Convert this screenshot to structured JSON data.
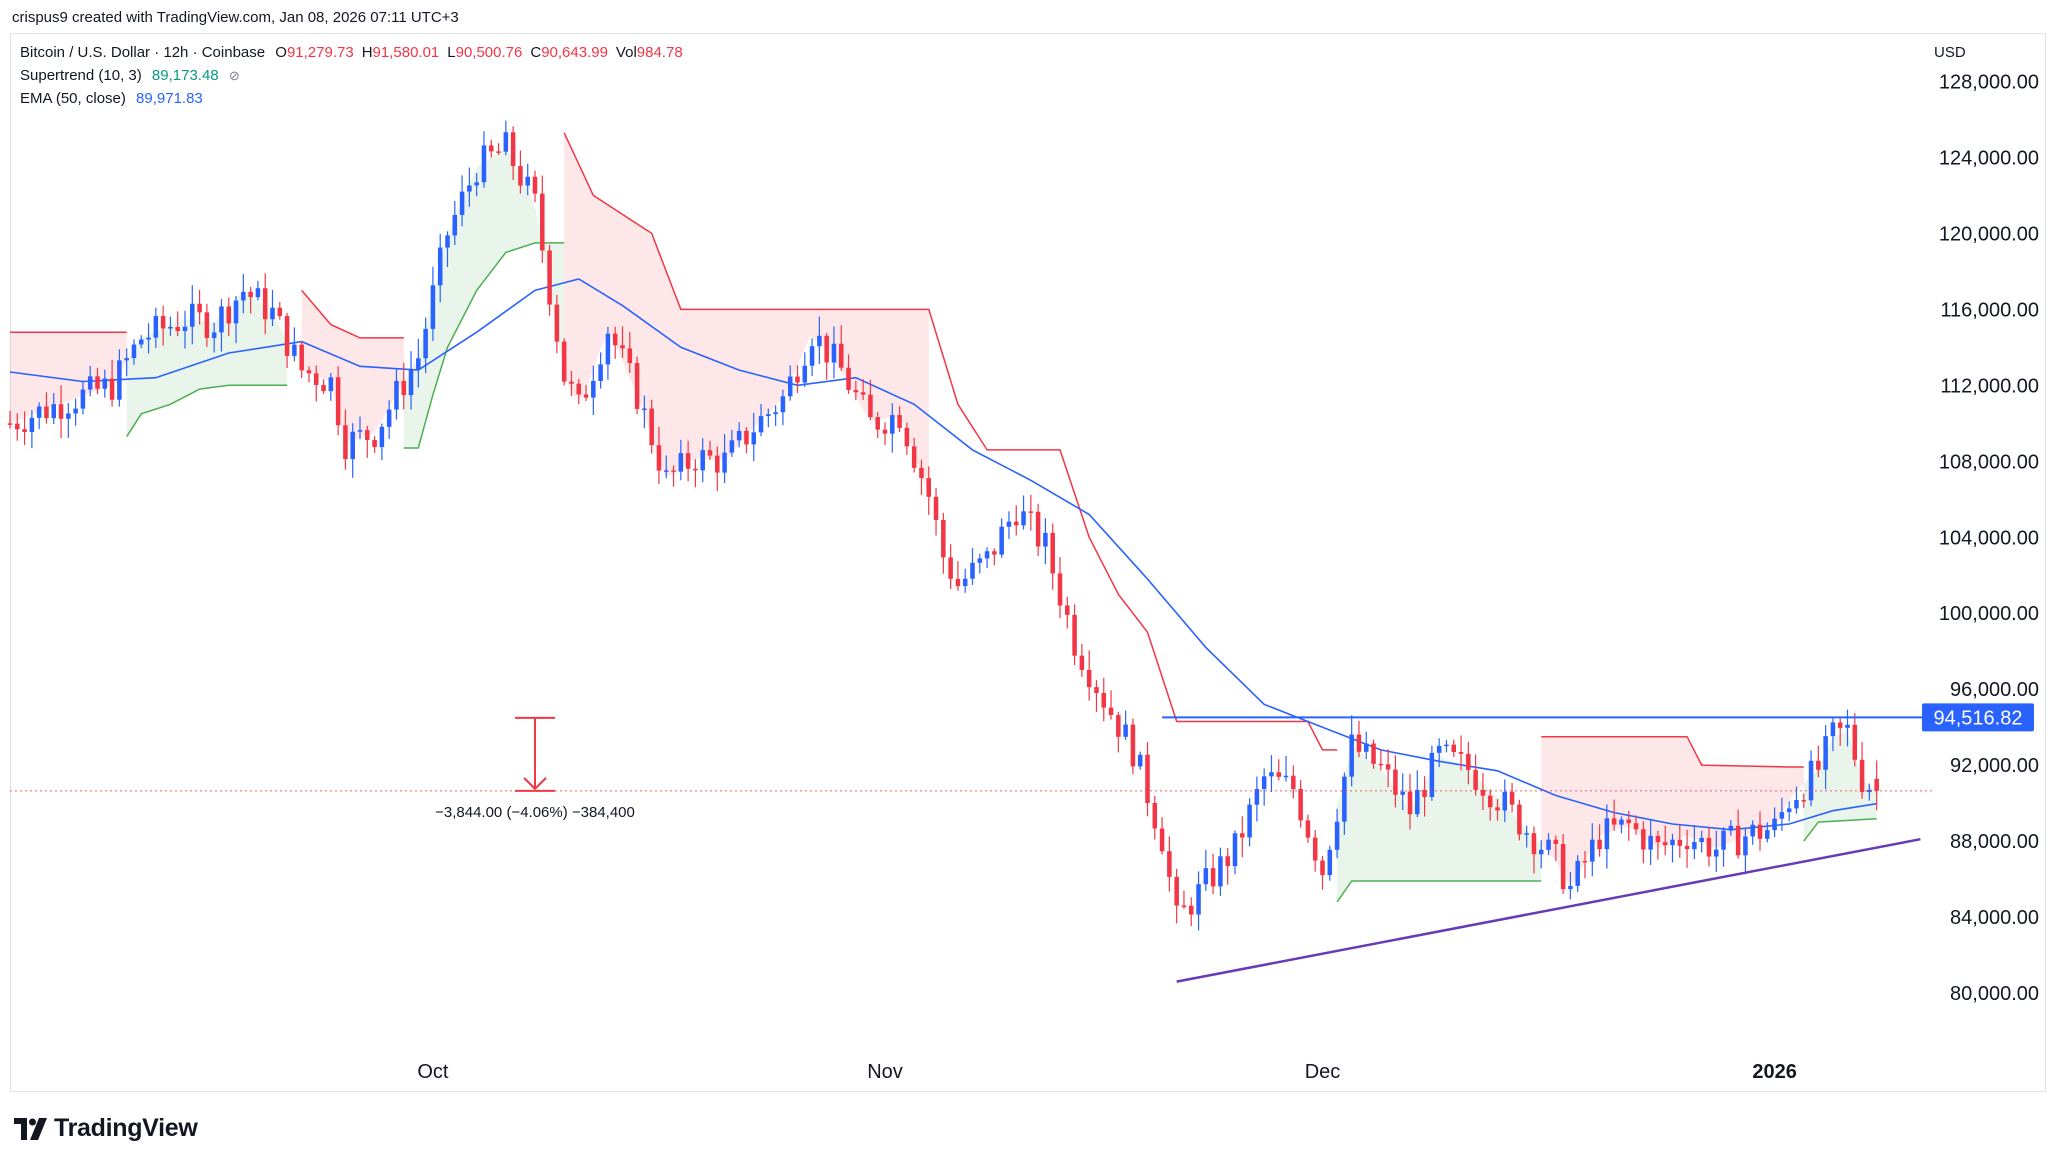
{
  "header": {
    "attribution": "crispus9 created with TradingView.com, Jan 08, 2026 07:11 UTC+3"
  },
  "legend": {
    "symbol": "Bitcoin / U.S. Dollar · 12h · Coinbase",
    "ohlc": [
      {
        "key": "O",
        "value": "91,279.73"
      },
      {
        "key": "H",
        "value": "91,580.01"
      },
      {
        "key": "L",
        "value": "90,500.76"
      },
      {
        "key": "C",
        "value": "90,643.99"
      },
      {
        "key": "Vol",
        "value": "984.78"
      }
    ],
    "supertrend_label": "Supertrend (10, 3)",
    "supertrend_value": "89,173.48",
    "ema_label": "EMA (50, close)",
    "ema_value": "89,971.83"
  },
  "currency": "USD",
  "brand": "TradingView",
  "colors": {
    "up": "#2962ff",
    "down": "#f23645",
    "ema": "#2962ff",
    "supertrend_up": "#4caf50",
    "supertrend_down": "#f23645",
    "support_line": "#673ab7",
    "resistance_line": "#2962ff"
  },
  "chart_data": {
    "type": "candlestick",
    "interval": "12h",
    "y_axis": {
      "ticks": [
        80000,
        84000,
        88000,
        92000,
        96000,
        100000,
        104000,
        108000,
        112000,
        116000,
        120000,
        124000,
        128000
      ],
      "tick_labels": [
        "80,000.00",
        "84,000.00",
        "88,000.00",
        "92,000.00",
        "96,000.00",
        "100,000.00",
        "104,000.00",
        "108,000.00",
        "112,000.00",
        "116,000.00",
        "120,000.00",
        "124,000.00",
        "128,000.00"
      ],
      "range": [
        77000,
        130500
      ]
    },
    "x_axis": {
      "labels": [
        {
          "text": "Oct",
          "date": "2025-10-01",
          "bold": false
        },
        {
          "text": "Nov",
          "date": "2025-11-01",
          "bold": false
        },
        {
          "text": "Dec",
          "date": "2025-12-01",
          "bold": false
        },
        {
          "text": "2026",
          "date": "2026-01-01",
          "bold": true
        }
      ],
      "range": [
        "2025-09-02",
        "2026-01-12"
      ]
    },
    "price_levels": [
      {
        "name": "resistance",
        "value": 94516.82,
        "label": "94,516.82",
        "from": "2025-11-20",
        "to": "2026-01-12"
      },
      {
        "name": "last-price",
        "value": 90643.99
      }
    ],
    "trendline": {
      "from": {
        "date": "2025-11-21",
        "value": 80600
      },
      "to": {
        "date": "2026-01-11",
        "value": 88100
      }
    },
    "measure": {
      "from_value": 94487.99,
      "to_value": 90643.99,
      "date": "2025-10-08",
      "text": "−3,844.00 (−4.06%) −384,400"
    },
    "ema_50": [
      {
        "date": "2025-09-02",
        "value": 112700
      },
      {
        "date": "2025-09-07",
        "value": 112200
      },
      {
        "date": "2025-09-12",
        "value": 112400
      },
      {
        "date": "2025-09-17",
        "value": 113700
      },
      {
        "date": "2025-09-22",
        "value": 114300
      },
      {
        "date": "2025-09-26",
        "value": 113000
      },
      {
        "date": "2025-09-30",
        "value": 112800
      },
      {
        "date": "2025-10-04",
        "value": 114800
      },
      {
        "date": "2025-10-08",
        "value": 117000
      },
      {
        "date": "2025-10-11",
        "value": 117600
      },
      {
        "date": "2025-10-14",
        "value": 116200
      },
      {
        "date": "2025-10-18",
        "value": 114000
      },
      {
        "date": "2025-10-22",
        "value": 112800
      },
      {
        "date": "2025-10-26",
        "value": 112000
      },
      {
        "date": "2025-10-30",
        "value": 112400
      },
      {
        "date": "2025-11-03",
        "value": 111000
      },
      {
        "date": "2025-11-07",
        "value": 108600
      },
      {
        "date": "2025-11-11",
        "value": 107000
      },
      {
        "date": "2025-11-15",
        "value": 105200
      },
      {
        "date": "2025-11-19",
        "value": 101800
      },
      {
        "date": "2025-11-23",
        "value": 98200
      },
      {
        "date": "2025-11-27",
        "value": 95200
      },
      {
        "date": "2025-12-01",
        "value": 94000
      },
      {
        "date": "2025-12-05",
        "value": 92800
      },
      {
        "date": "2025-12-09",
        "value": 92200
      },
      {
        "date": "2025-12-13",
        "value": 91700
      },
      {
        "date": "2025-12-17",
        "value": 90400
      },
      {
        "date": "2025-12-21",
        "value": 89500
      },
      {
        "date": "2025-12-25",
        "value": 88900
      },
      {
        "date": "2025-12-29",
        "value": 88600
      },
      {
        "date": "2026-01-02",
        "value": 88900
      },
      {
        "date": "2026-01-05",
        "value": 89600
      },
      {
        "date": "2026-01-08",
        "value": 89970
      }
    ],
    "supertrend": [
      {
        "from": "2025-09-02",
        "to": "2025-09-10",
        "dir": "down",
        "points": [
          {
            "date": "2025-09-02",
            "value": 114800
          },
          {
            "date": "2025-09-10",
            "value": 114800
          }
        ]
      },
      {
        "from": "2025-09-10",
        "to": "2025-09-21",
        "dir": "up",
        "points": [
          {
            "date": "2025-09-10",
            "value": 109300
          },
          {
            "date": "2025-09-11",
            "value": 110500
          },
          {
            "date": "2025-09-13",
            "value": 111000
          },
          {
            "date": "2025-09-15",
            "value": 111800
          },
          {
            "date": "2025-09-17",
            "value": 112000
          },
          {
            "date": "2025-09-21",
            "value": 112000
          }
        ]
      },
      {
        "from": "2025-09-22",
        "to": "2025-09-29",
        "dir": "down",
        "points": [
          {
            "date": "2025-09-22",
            "value": 117000
          },
          {
            "date": "2025-09-24",
            "value": 115200
          },
          {
            "date": "2025-09-26",
            "value": 114500
          },
          {
            "date": "2025-09-29",
            "value": 114500
          }
        ]
      },
      {
        "from": "2025-09-29",
        "to": "2025-10-10",
        "dir": "up",
        "points": [
          {
            "date": "2025-09-29",
            "value": 108700
          },
          {
            "date": "2025-09-30",
            "value": 108700
          },
          {
            "date": "2025-10-01",
            "value": 111500
          },
          {
            "date": "2025-10-02",
            "value": 114000
          },
          {
            "date": "2025-10-04",
            "value": 117000
          },
          {
            "date": "2025-10-06",
            "value": 119000
          },
          {
            "date": "2025-10-08",
            "value": 119500
          },
          {
            "date": "2025-10-10",
            "value": 119500
          }
        ]
      },
      {
        "from": "2025-10-10",
        "to": "2025-11-04",
        "dir": "down",
        "points": [
          {
            "date": "2025-10-10",
            "value": 125300
          },
          {
            "date": "2025-10-12",
            "value": 122000
          },
          {
            "date": "2025-10-14",
            "value": 121000
          },
          {
            "date": "2025-10-16",
            "value": 120000
          },
          {
            "date": "2025-10-18",
            "value": 116000
          },
          {
            "date": "2025-11-04",
            "value": 116000
          },
          {
            "date": "2025-11-06",
            "value": 111000
          },
          {
            "date": "2025-11-08",
            "value": 108600
          },
          {
            "date": "2025-11-13",
            "value": 108600
          },
          {
            "date": "2025-11-15",
            "value": 104000
          },
          {
            "date": "2025-11-17",
            "value": 101000
          },
          {
            "date": "2025-11-19",
            "value": 99000
          },
          {
            "date": "2025-11-21",
            "value": 94300
          },
          {
            "date": "2025-11-30",
            "value": 94300
          },
          {
            "date": "2025-12-01",
            "value": 92800
          },
          {
            "date": "2025-12-02",
            "value": 92800
          }
        ]
      },
      {
        "from": "2025-12-02",
        "to": "2025-12-16",
        "dir": "up",
        "points": [
          {
            "date": "2025-12-02",
            "value": 84800
          },
          {
            "date": "2025-12-03",
            "value": 85900
          },
          {
            "date": "2025-12-16",
            "value": 85900
          }
        ]
      },
      {
        "from": "2025-12-16",
        "to": "2026-01-03",
        "dir": "down",
        "points": [
          {
            "date": "2025-12-16",
            "value": 93500
          },
          {
            "date": "2025-12-26",
            "value": 93500
          },
          {
            "date": "2025-12-27",
            "value": 92000
          },
          {
            "date": "2026-01-02",
            "value": 91900
          },
          {
            "date": "2026-01-03",
            "value": 91900
          }
        ]
      },
      {
        "from": "2026-01-03",
        "to": "2026-01-08",
        "dir": "up",
        "points": [
          {
            "date": "2026-01-03",
            "value": 88000
          },
          {
            "date": "2026-01-04",
            "value": 89000
          },
          {
            "date": "2026-01-08",
            "value": 89173
          }
        ]
      }
    ],
    "candles_close_path": [
      {
        "date": "2025-09-02",
        "value": 110000
      },
      {
        "date": "2025-09-06",
        "value": 111200
      },
      {
        "date": "2025-09-09",
        "value": 112000
      },
      {
        "date": "2025-09-11",
        "value": 114500
      },
      {
        "date": "2025-09-14",
        "value": 115500
      },
      {
        "date": "2025-09-16",
        "value": 115300
      },
      {
        "date": "2025-09-18",
        "value": 117000
      },
      {
        "date": "2025-09-20",
        "value": 115800
      },
      {
        "date": "2025-09-22",
        "value": 112800
      },
      {
        "date": "2025-09-24",
        "value": 112200
      },
      {
        "date": "2025-09-25",
        "value": 109000
      },
      {
        "date": "2025-09-27",
        "value": 109500
      },
      {
        "date": "2025-09-30",
        "value": 113500
      },
      {
        "date": "2025-10-02",
        "value": 120000
      },
      {
        "date": "2025-10-04",
        "value": 123500
      },
      {
        "date": "2025-10-06",
        "value": 124500
      },
      {
        "date": "2025-10-08",
        "value": 121500
      },
      {
        "date": "2025-10-10",
        "value": 112500
      },
      {
        "date": "2025-10-11",
        "value": 110800
      },
      {
        "date": "2025-10-13",
        "value": 115000
      },
      {
        "date": "2025-10-15",
        "value": 111500
      },
      {
        "date": "2025-10-17",
        "value": 107000
      },
      {
        "date": "2025-10-19",
        "value": 108200
      },
      {
        "date": "2025-10-21",
        "value": 108000
      },
      {
        "date": "2025-10-23",
        "value": 109800
      },
      {
        "date": "2025-10-25",
        "value": 111300
      },
      {
        "date": "2025-10-27",
        "value": 114800
      },
      {
        "date": "2025-10-29",
        "value": 112800
      },
      {
        "date": "2025-10-31",
        "value": 110000
      },
      {
        "date": "2025-11-02",
        "value": 110500
      },
      {
        "date": "2025-11-04",
        "value": 106200
      },
      {
        "date": "2025-11-05",
        "value": 103000
      },
      {
        "date": "2025-11-06",
        "value": 101500
      },
      {
        "date": "2025-11-08",
        "value": 102800
      },
      {
        "date": "2025-11-10",
        "value": 105500
      },
      {
        "date": "2025-11-12",
        "value": 103500
      },
      {
        "date": "2025-11-14",
        "value": 98500
      },
      {
        "date": "2025-11-16",
        "value": 95500
      },
      {
        "date": "2025-11-18",
        "value": 92800
      },
      {
        "date": "2025-11-20",
        "value": 88200
      },
      {
        "date": "2025-11-21",
        "value": 83800
      },
      {
        "date": "2025-11-22",
        "value": 84800
      },
      {
        "date": "2025-11-25",
        "value": 87600
      },
      {
        "date": "2025-11-27",
        "value": 91300
      },
      {
        "date": "2025-11-29",
        "value": 90800
      },
      {
        "date": "2025-12-01",
        "value": 86500
      },
      {
        "date": "2025-12-03",
        "value": 93000
      },
      {
        "date": "2025-12-05",
        "value": 91800
      },
      {
        "date": "2025-12-07",
        "value": 89600
      },
      {
        "date": "2025-12-09",
        "value": 92500
      },
      {
        "date": "2025-12-11",
        "value": 91800
      },
      {
        "date": "2025-12-13",
        "value": 90300
      },
      {
        "date": "2025-12-15",
        "value": 88600
      },
      {
        "date": "2025-12-17",
        "value": 87000
      },
      {
        "date": "2025-12-18",
        "value": 85500
      },
      {
        "date": "2025-12-20",
        "value": 88300
      },
      {
        "date": "2025-12-22",
        "value": 88800
      },
      {
        "date": "2025-12-24",
        "value": 87600
      },
      {
        "date": "2025-12-26",
        "value": 88300
      },
      {
        "date": "2025-12-28",
        "value": 87600
      },
      {
        "date": "2025-12-30",
        "value": 88300
      },
      {
        "date": "2026-01-01",
        "value": 88700
      },
      {
        "date": "2026-01-02",
        "value": 90200
      },
      {
        "date": "2026-01-04",
        "value": 91800
      },
      {
        "date": "2026-01-05",
        "value": 93500
      },
      {
        "date": "2026-01-06",
        "value": 93800
      },
      {
        "date": "2026-01-07",
        "value": 91300
      },
      {
        "date": "2026-01-08",
        "value": 90644
      }
    ]
  }
}
